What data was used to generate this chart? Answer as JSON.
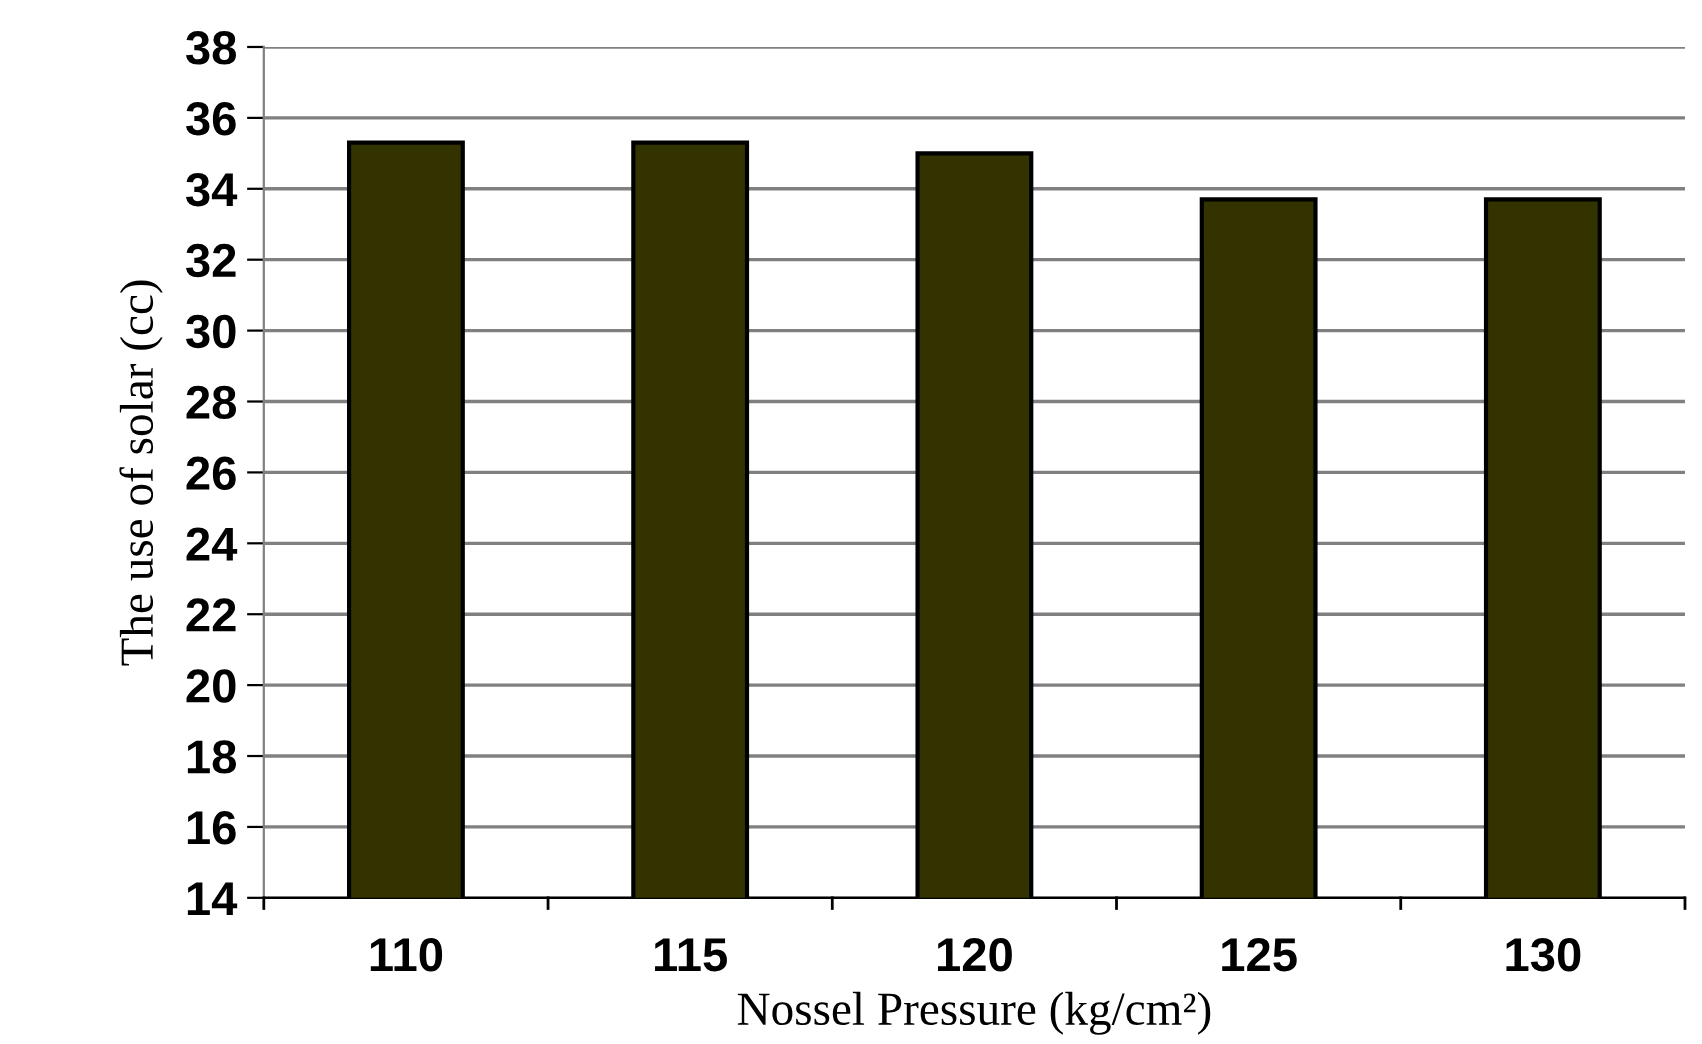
{
  "chart_data": {
    "type": "bar",
    "xlabel": "Nossel Pressure (kg/cm²)",
    "ylabel": "The use of solar (cc)",
    "categories": [
      "110",
      "115",
      "120",
      "125",
      "130"
    ],
    "values": [
      35.3,
      35.3,
      35.0,
      33.7,
      33.7
    ],
    "color": "#333300",
    "ylim": [
      14,
      38
    ],
    "yticks": [
      14,
      16,
      18,
      20,
      22,
      24,
      26,
      28,
      30,
      32,
      34,
      36,
      38
    ],
    "grid": "y",
    "legend": false
  }
}
